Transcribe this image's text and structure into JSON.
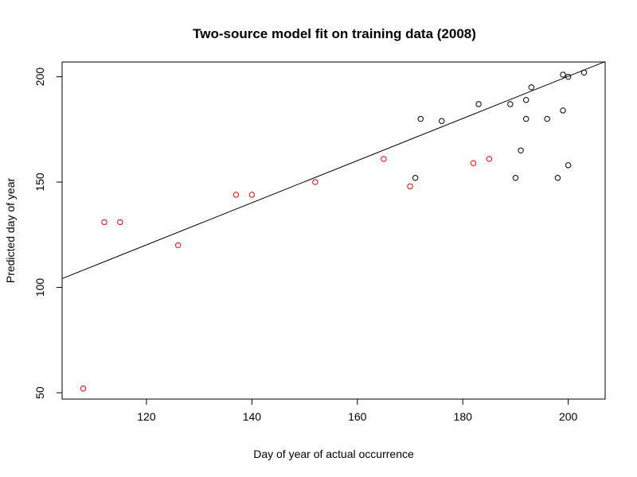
{
  "chart_data": {
    "type": "scatter",
    "title": "Two-source model fit on training data (2008)",
    "xlabel": "Day of year of actual occurrence",
    "ylabel": "Predicted day of year",
    "xlim": [
      104,
      207
    ],
    "ylim": [
      47,
      207
    ],
    "x_ticks": [
      120,
      140,
      160,
      180,
      200
    ],
    "y_ticks": [
      50,
      100,
      150,
      200
    ],
    "grid": false,
    "legend": "none",
    "series": [
      {
        "color": "#ff0000",
        "points": [
          [
            108,
            52
          ],
          [
            112,
            131
          ],
          [
            115,
            131
          ],
          [
            126,
            120
          ],
          [
            137,
            144
          ],
          [
            140,
            144
          ],
          [
            152,
            150
          ],
          [
            165,
            161
          ],
          [
            170,
            148
          ],
          [
            182,
            159
          ],
          [
            185,
            161
          ]
        ]
      },
      {
        "color": "#000000",
        "points": [
          [
            171,
            152
          ],
          [
            172,
            180
          ],
          [
            176,
            179
          ],
          [
            183,
            187
          ],
          [
            189,
            187
          ],
          [
            190,
            152
          ],
          [
            191,
            165
          ],
          [
            192,
            189
          ],
          [
            192,
            180
          ],
          [
            193,
            195
          ],
          [
            196,
            180
          ],
          [
            198,
            152
          ],
          [
            199,
            201
          ],
          [
            199,
            184
          ],
          [
            200,
            200
          ],
          [
            200,
            158
          ],
          [
            203,
            202
          ]
        ]
      }
    ],
    "fit_line": {
      "color": "#000000",
      "points": [
        [
          104,
          104.2
        ],
        [
          207,
          207.2
        ]
      ]
    }
  }
}
